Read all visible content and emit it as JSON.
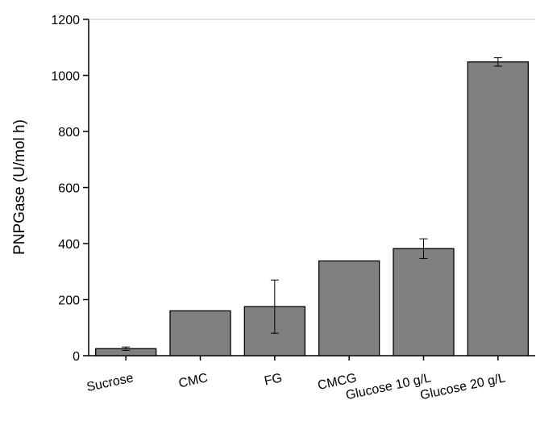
{
  "chart_data": {
    "type": "bar",
    "title": "",
    "xlabel": "",
    "ylabel": "PNPGase (U/mol h)",
    "ylim": [
      0,
      1200
    ],
    "yticks": [
      0,
      200,
      400,
      600,
      800,
      1000,
      1200
    ],
    "categories": [
      "Sucrose",
      "CMC",
      "FG",
      "CMCG",
      "Glucose 10 g/L",
      "Glucose 20 g/L"
    ],
    "values": [
      25,
      160,
      175,
      338,
      382,
      1048
    ],
    "errors": [
      6,
      0,
      95,
      0,
      35,
      15
    ],
    "bar_color": "#808080",
    "grid": false,
    "legend": "none"
  }
}
